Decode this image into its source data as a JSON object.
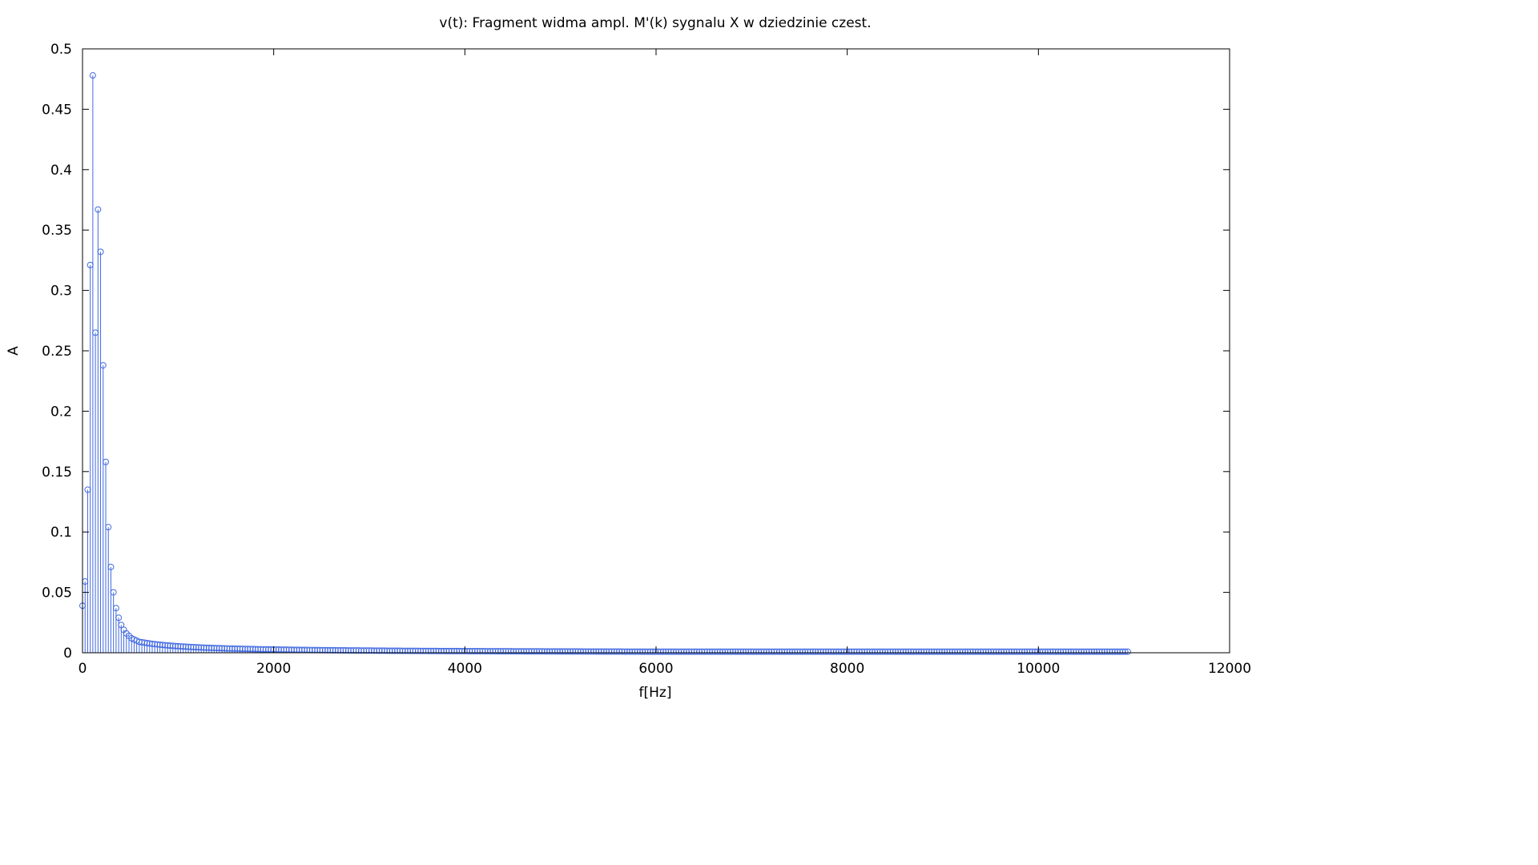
{
  "chart_data": {
    "type": "stem",
    "title": "v(t): Fragment widma ampl. M'(k) sygnalu X w dziedzinie czest.",
    "xlabel": "f[Hz]",
    "ylabel": "A",
    "xlim": [
      0,
      12000
    ],
    "ylim": [
      0,
      0.5
    ],
    "xticks": [
      0,
      2000,
      4000,
      6000,
      8000,
      10000,
      12000
    ],
    "xtick_labels": [
      "0",
      "2000",
      "4000",
      "6000",
      "8000",
      "10000",
      "12000"
    ],
    "yticks": [
      0,
      0.05,
      0.1,
      0.15,
      0.2,
      0.25,
      0.3,
      0.35,
      0.4,
      0.45,
      0.5
    ],
    "ytick_labels": [
      "0",
      "0.05",
      "0.1",
      "0.15",
      "0.2",
      "0.25",
      "0.3",
      "0.35",
      "0.4",
      "0.45",
      "0.5"
    ],
    "grid": false,
    "color": "#4169e1",
    "series": [
      {
        "x_start": 0,
        "x_step": 27,
        "count": 406,
        "peaks": [
          [
            0,
            0.039
          ],
          [
            27,
            0.059
          ],
          [
            54,
            0.135
          ],
          [
            81,
            0.321
          ],
          [
            108,
            0.478
          ],
          [
            135,
            0.265
          ],
          [
            162,
            0.367
          ],
          [
            189,
            0.332
          ],
          [
            216,
            0.238
          ],
          [
            243,
            0.158
          ],
          [
            270,
            0.104
          ],
          [
            297,
            0.071
          ],
          [
            324,
            0.05
          ],
          [
            351,
            0.037
          ],
          [
            378,
            0.029
          ],
          [
            405,
            0.023
          ],
          [
            432,
            0.019
          ],
          [
            459,
            0.016
          ],
          [
            486,
            0.014
          ],
          [
            513,
            0.012
          ],
          [
            540,
            0.011
          ],
          [
            567,
            0.01
          ],
          [
            594,
            0.009
          ]
        ],
        "tail": "decays from about 0.009 near 600 Hz to about 0.001 near 10950 Hz"
      }
    ]
  }
}
